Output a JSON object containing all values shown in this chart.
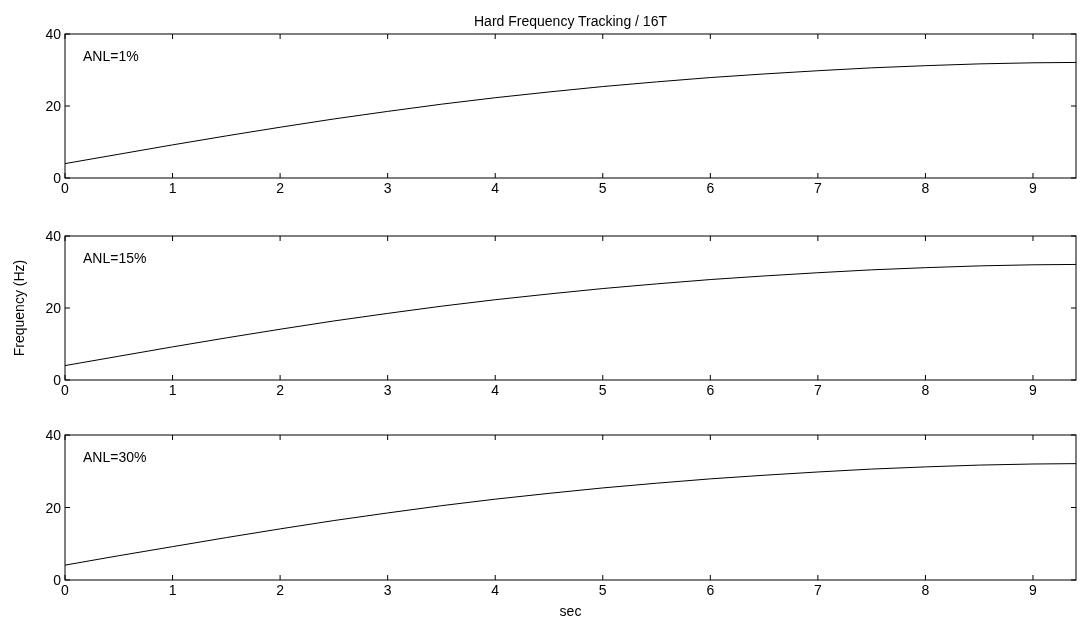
{
  "chart_data": [
    {
      "type": "line",
      "title": "Hard Frequency Tracking / 16T",
      "annotations": [
        "ANL=1%"
      ],
      "xlim": [
        0,
        9.4
      ],
      "xticks": [
        0,
        1,
        2,
        3,
        4,
        5,
        6,
        7,
        8,
        9
      ],
      "ylim": [
        0,
        40
      ],
      "yticks": [
        0,
        20,
        40
      ],
      "grid": false,
      "series": [
        {
          "color": "#000000",
          "x": [
            0,
            0.5,
            1,
            1.5,
            2,
            2.5,
            3,
            3.5,
            4,
            4.5,
            5,
            5.5,
            6,
            6.5,
            7,
            7.5,
            8,
            8.5,
            9,
            9.4
          ],
          "values": [
            4.0,
            6.6,
            9.2,
            11.7,
            14.1,
            16.4,
            18.5,
            20.5,
            22.3,
            23.9,
            25.4,
            26.7,
            27.9,
            28.9,
            29.8,
            30.6,
            31.2,
            31.7,
            32.0,
            32.1
          ]
        }
      ]
    },
    {
      "type": "line",
      "ylabel": "Frequency (Hz)",
      "annotations": [
        "ANL=15%"
      ],
      "xlim": [
        0,
        9.4
      ],
      "xticks": [
        0,
        1,
        2,
        3,
        4,
        5,
        6,
        7,
        8,
        9
      ],
      "ylim": [
        0,
        40
      ],
      "yticks": [
        0,
        20,
        40
      ],
      "grid": false,
      "series": [
        {
          "color": "#000000",
          "x": [
            0,
            0.5,
            1,
            1.5,
            2,
            2.5,
            3,
            3.5,
            4,
            4.5,
            5,
            5.5,
            6,
            6.5,
            7,
            7.5,
            8,
            8.5,
            9,
            9.4
          ],
          "values": [
            4.0,
            6.6,
            9.2,
            11.7,
            14.1,
            16.4,
            18.5,
            20.5,
            22.3,
            23.9,
            25.4,
            26.7,
            27.9,
            28.9,
            29.8,
            30.6,
            31.2,
            31.7,
            32.0,
            32.1
          ]
        }
      ]
    },
    {
      "type": "line",
      "xlabel": "sec",
      "annotations": [
        "ANL=30%"
      ],
      "xlim": [
        0,
        9.4
      ],
      "xticks": [
        0,
        1,
        2,
        3,
        4,
        5,
        6,
        7,
        8,
        9
      ],
      "ylim": [
        0,
        40
      ],
      "yticks": [
        0,
        20,
        40
      ],
      "grid": false,
      "series": [
        {
          "color": "#000000",
          "x": [
            0,
            0.5,
            1,
            1.5,
            2,
            2.5,
            3,
            3.5,
            4,
            4.5,
            5,
            5.5,
            6,
            6.5,
            7,
            7.5,
            8,
            8.5,
            9,
            9.4
          ],
          "values": [
            4.1,
            6.7,
            9.2,
            11.7,
            14.1,
            16.4,
            18.5,
            20.5,
            22.3,
            23.9,
            25.4,
            26.7,
            27.9,
            28.9,
            29.8,
            30.6,
            31.2,
            31.7,
            32.0,
            32.1
          ]
        }
      ]
    }
  ]
}
